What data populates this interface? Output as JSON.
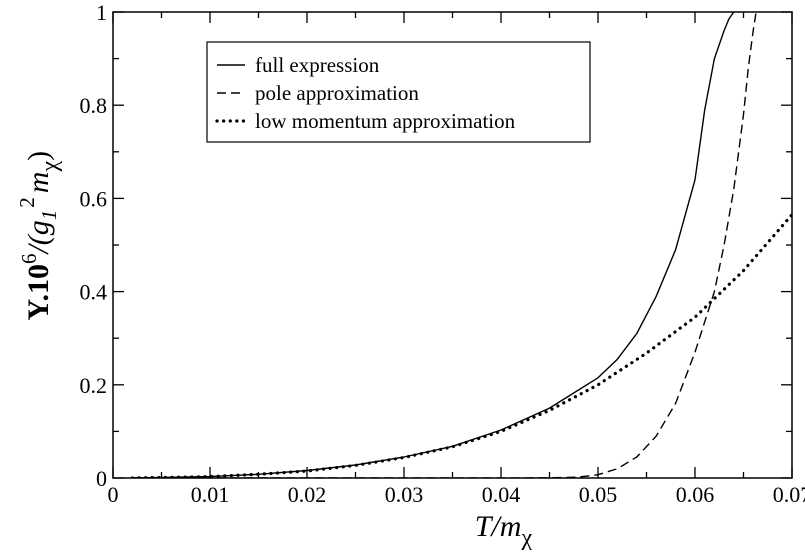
{
  "chart_data": {
    "type": "line",
    "title": "",
    "xlabel": {
      "main": "T/m",
      "sub": "χ"
    },
    "ylabel": {
      "pre": "Y.10",
      "exp": "6",
      "mid": "/(g",
      "g_sub": "1",
      "g_sup": "2",
      "m": "m",
      "m_sub": "χ",
      "post": ")"
    },
    "xlim": [
      0,
      0.07
    ],
    "ylim": [
      0,
      1
    ],
    "x_ticks": [
      "0",
      "0.01",
      "0.02",
      "0.03",
      "0.04",
      "0.05",
      "0.06",
      "0.07"
    ],
    "y_ticks": [
      "0",
      "0.2",
      "0.4",
      "0.6",
      "0.8",
      "1"
    ],
    "grid": false,
    "legend_position": "top-left",
    "series": [
      {
        "name": "full expression",
        "style": "solid",
        "x": [
          0.002,
          0.005,
          0.01,
          0.015,
          0.02,
          0.025,
          0.03,
          0.035,
          0.04,
          0.045,
          0.05,
          0.052,
          0.054,
          0.056,
          0.058,
          0.06,
          0.061,
          0.062,
          0.063,
          0.0635,
          0.064
        ],
        "y": [
          0.0,
          0.001,
          0.003,
          0.008,
          0.016,
          0.028,
          0.045,
          0.068,
          0.103,
          0.15,
          0.215,
          0.255,
          0.31,
          0.39,
          0.49,
          0.64,
          0.79,
          0.9,
          0.96,
          0.985,
          1.0
        ]
      },
      {
        "name": "pole approximation",
        "style": "dashed",
        "x": [
          0.002,
          0.01,
          0.02,
          0.03,
          0.04,
          0.045,
          0.048,
          0.05,
          0.052,
          0.054,
          0.056,
          0.058,
          0.06,
          0.062,
          0.063,
          0.064,
          0.065,
          0.0655,
          0.066,
          0.0663
        ],
        "y": [
          0.0,
          0.0,
          0.0,
          0.0,
          0.0,
          0.0005,
          0.002,
          0.007,
          0.02,
          0.045,
          0.09,
          0.16,
          0.27,
          0.4,
          0.5,
          0.62,
          0.78,
          0.88,
          0.96,
          1.0
        ]
      },
      {
        "name": "low momentum approximation",
        "style": "dotted",
        "x": [
          0.002,
          0.005,
          0.01,
          0.015,
          0.02,
          0.025,
          0.03,
          0.035,
          0.04,
          0.045,
          0.05,
          0.055,
          0.06,
          0.065,
          0.07
        ],
        "y": [
          0.0,
          0.001,
          0.003,
          0.008,
          0.015,
          0.027,
          0.044,
          0.067,
          0.1,
          0.145,
          0.2,
          0.268,
          0.345,
          0.445,
          0.565
        ]
      }
    ]
  }
}
